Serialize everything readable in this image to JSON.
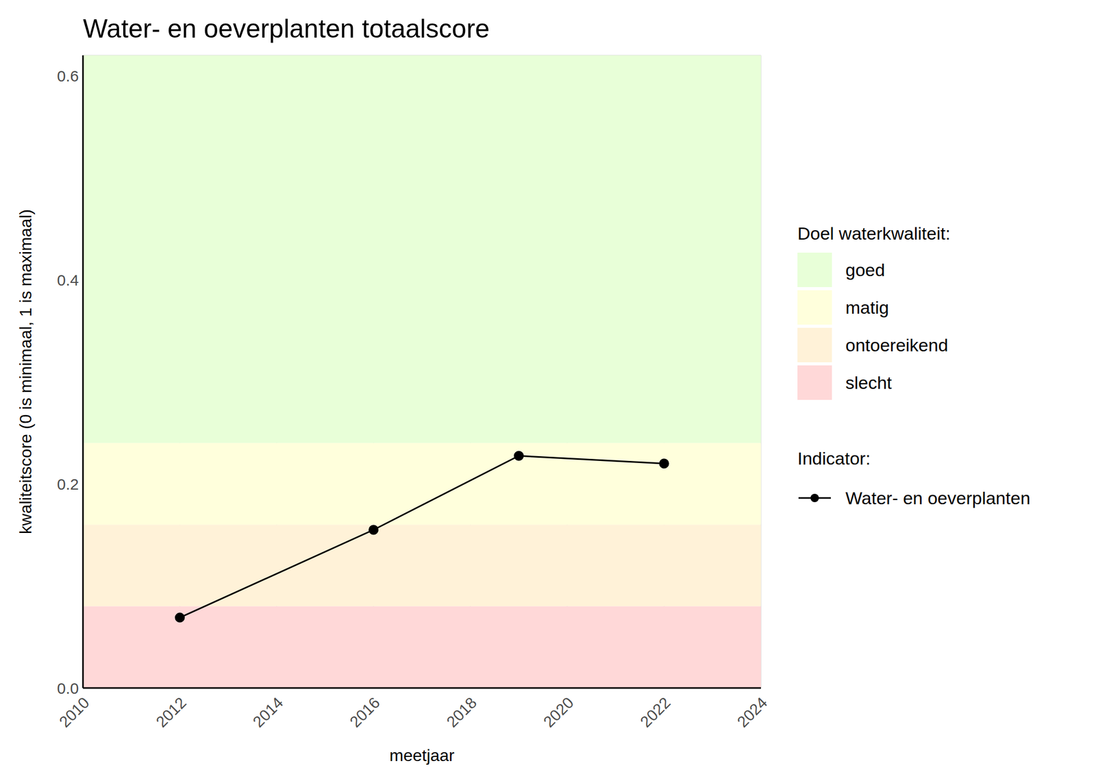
{
  "chart_data": {
    "type": "line",
    "title": "Water- en oeverplanten totaalscore",
    "x_label": "meetjaar",
    "y_label": "kwaliteitscore (0 is minimaal, 1 is maximaal)",
    "x": [
      2012,
      2016,
      2019,
      2022
    ],
    "series": [
      {
        "name": "Water- en oeverplanten",
        "color": "#000000",
        "marker": "circle",
        "line_style": "solid",
        "values": [
          0.069,
          0.155,
          0.2275,
          0.22
        ]
      }
    ],
    "xlim": [
      2010,
      2024
    ],
    "xticks": [
      2010,
      2012,
      2014,
      2016,
      2018,
      2020,
      2022,
      2024
    ],
    "ylim": [
      0,
      0.62
    ],
    "yticks": [
      {
        "value": 0,
        "label": "0.0"
      },
      0.2,
      0.4,
      0.6
    ],
    "grid": true,
    "legend": "right",
    "band_legend_title": "Doel waterkwaliteit:",
    "series_legend_title": "Indicator:",
    "bands": [
      {
        "name": "goed",
        "color": "#e8ffd8",
        "range": [
          0.24,
          0.62
        ]
      },
      {
        "name": "matig",
        "color": "#ffffdc",
        "range": [
          0.16,
          0.24
        ]
      },
      {
        "name": "ontoereikend",
        "color": "#fff2d8",
        "range": [
          0.08,
          0.16
        ]
      },
      {
        "name": "slecht",
        "color": "#ffd8d8",
        "range": [
          0,
          0.08
        ]
      }
    ]
  }
}
